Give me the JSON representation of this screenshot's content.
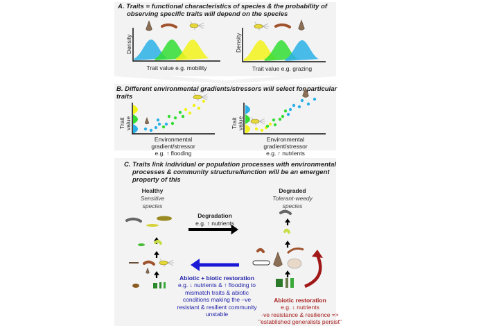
{
  "panel_a": {
    "title_line1": "A. Traits = functional characteristics  of species & the probability of",
    "title_line2": "observing specific traits will depend on the species",
    "left_chart": {
      "ylabel": "Density",
      "xlabel": "Trait value  e.g. mobility",
      "curve_order": [
        "blue",
        "green",
        "yellow"
      ]
    },
    "right_chart": {
      "ylabel": "Density",
      "xlabel": "Trait value  e.g. grazing",
      "curve_order": [
        "yellow",
        "green",
        "blue"
      ]
    }
  },
  "panel_b": {
    "title_line1": "B. Different  environmental  gradients/stressors  will select for particular",
    "title_line2": "traits",
    "left_chart": {
      "ylabel_line1": "Trait",
      "ylabel_line2": "value",
      "xlabel_line1": "Environmental",
      "xlabel_line2": "gradient/stressor",
      "xlabel_line3": "e.g. ↑ flooding"
    },
    "right_chart": {
      "ylabel_line1": "Trait",
      "ylabel_line2": "value",
      "xlabel_line1": "Environmental",
      "xlabel_line2": "gradient/stressor",
      "xlabel_line3": "e.g. ↑ nutrients"
    }
  },
  "panel_c": {
    "title_line1": "C. Traits  link individual or population processes  with environmental",
    "title_line2": "processes  & community structure/function  will be an emergent",
    "title_line3": "property  of this",
    "healthy": {
      "heading": "Healthy",
      "sub1": "Sensitive",
      "sub2": "species"
    },
    "degraded": {
      "heading": "Degraded",
      "sub1": "Tolerant-weedy",
      "sub2": "species"
    },
    "degradation": {
      "heading": "Degradation",
      "detail": "e.g. ↑ nutrients"
    },
    "abiotic_biotic": {
      "heading": "Abiotic + biotic restoration",
      "lines": [
        "e.g. ↓ nutrients & ↑ flooding to",
        "mismatch traits & abiotic",
        "conditions making the –ve",
        "resistant & resilient community",
        "unstable"
      ]
    },
    "abiotic": {
      "heading": "Abiotic restoration",
      "lines": [
        "e.g. ↓ nutrients",
        "-ve  resistance & resilience =>",
        "\"established generalists persist\""
      ]
    }
  },
  "colors": {
    "blue": "#2ab0e6",
    "green": "#33dd33",
    "yellow": "#f2f21a",
    "blue_arrow": "#1a1ad6",
    "red_arrow": "#a01818",
    "blue_text": "#2222aa",
    "red_text": "#a82020",
    "panel_bg": "#f3f3f3"
  }
}
